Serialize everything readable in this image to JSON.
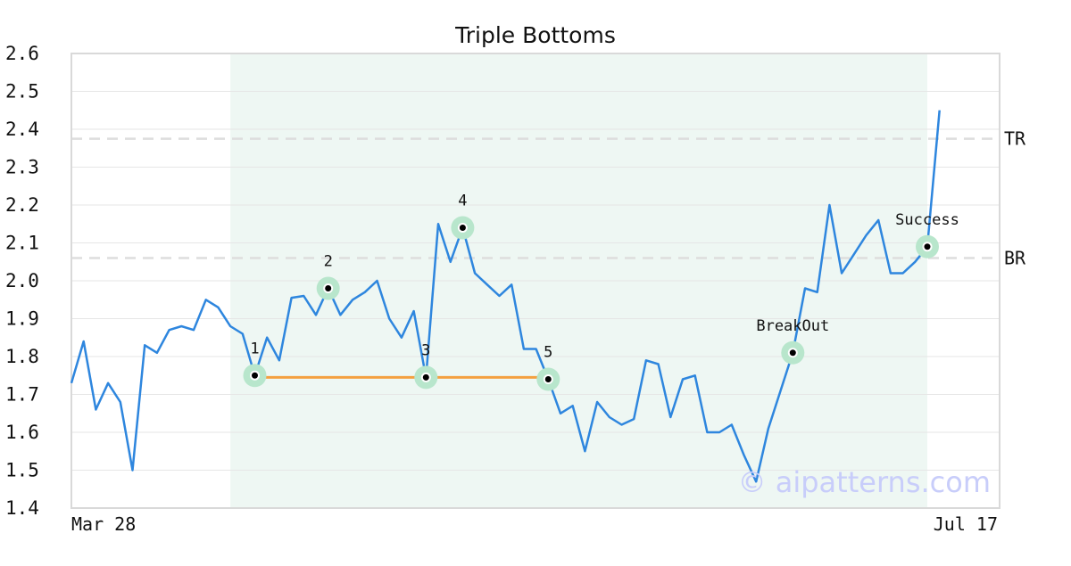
{
  "chart_data": {
    "type": "line",
    "title": "Triple Bottoms",
    "xlabel": "",
    "ylabel": "",
    "ylim": [
      1.4,
      2.6
    ],
    "yticks": [
      "1.4",
      "1.5",
      "1.6",
      "1.7",
      "1.8",
      "1.9",
      "2.0",
      "2.1",
      "2.2",
      "2.3",
      "2.4",
      "2.5",
      "2.6"
    ],
    "x_tick_labels": [
      "Mar 28",
      "Jul 17"
    ],
    "grid": "horizontal",
    "line_color": "#2e86de",
    "series": [
      {
        "values": [
          1.73,
          1.84,
          1.66,
          1.73,
          1.68,
          1.5,
          1.83,
          1.81,
          1.87,
          1.88,
          1.87,
          1.95,
          1.93,
          1.88,
          1.86,
          1.75,
          1.85,
          1.79,
          1.955,
          1.96,
          1.91,
          1.98,
          1.91,
          1.95,
          1.97,
          2.0,
          1.9,
          1.85,
          1.92,
          1.745,
          2.15,
          2.05,
          2.14,
          2.02,
          1.99,
          1.96,
          1.99,
          1.82,
          1.82,
          1.74,
          1.65,
          1.67,
          1.55,
          1.68,
          1.64,
          1.62,
          1.635,
          1.79,
          1.78,
          1.64,
          1.74,
          1.75,
          1.6,
          1.6,
          1.62,
          1.54,
          1.47,
          1.61,
          1.71,
          1.81,
          1.98,
          1.97,
          2.2,
          2.02,
          2.07,
          2.12,
          2.16,
          2.02,
          2.02,
          2.05,
          2.09,
          2.45
        ]
      }
    ],
    "pattern_region": {
      "start_index": 13,
      "end_index": 70,
      "color": "#eef7f3"
    },
    "levels": [
      {
        "label": "TR",
        "value": 2.375
      },
      {
        "label": "BR",
        "value": 2.06
      }
    ],
    "support_line": {
      "from_index": 15,
      "to_index": 39,
      "value": 1.745,
      "color": "#f4a040"
    },
    "markers": [
      {
        "label": "1",
        "index": 15,
        "value": 1.75
      },
      {
        "label": "2",
        "index": 21,
        "value": 1.98
      },
      {
        "label": "3",
        "index": 29,
        "value": 1.745
      },
      {
        "label": "4",
        "index": 32,
        "value": 2.14
      },
      {
        "label": "5",
        "index": 39,
        "value": 1.74
      },
      {
        "label": "BreakOut",
        "index": 59,
        "value": 1.81
      },
      {
        "label": "Success",
        "index": 70,
        "value": 2.09
      }
    ],
    "marker_halo_color": "#b8e6cc",
    "watermark": "© aipatterns.com"
  }
}
